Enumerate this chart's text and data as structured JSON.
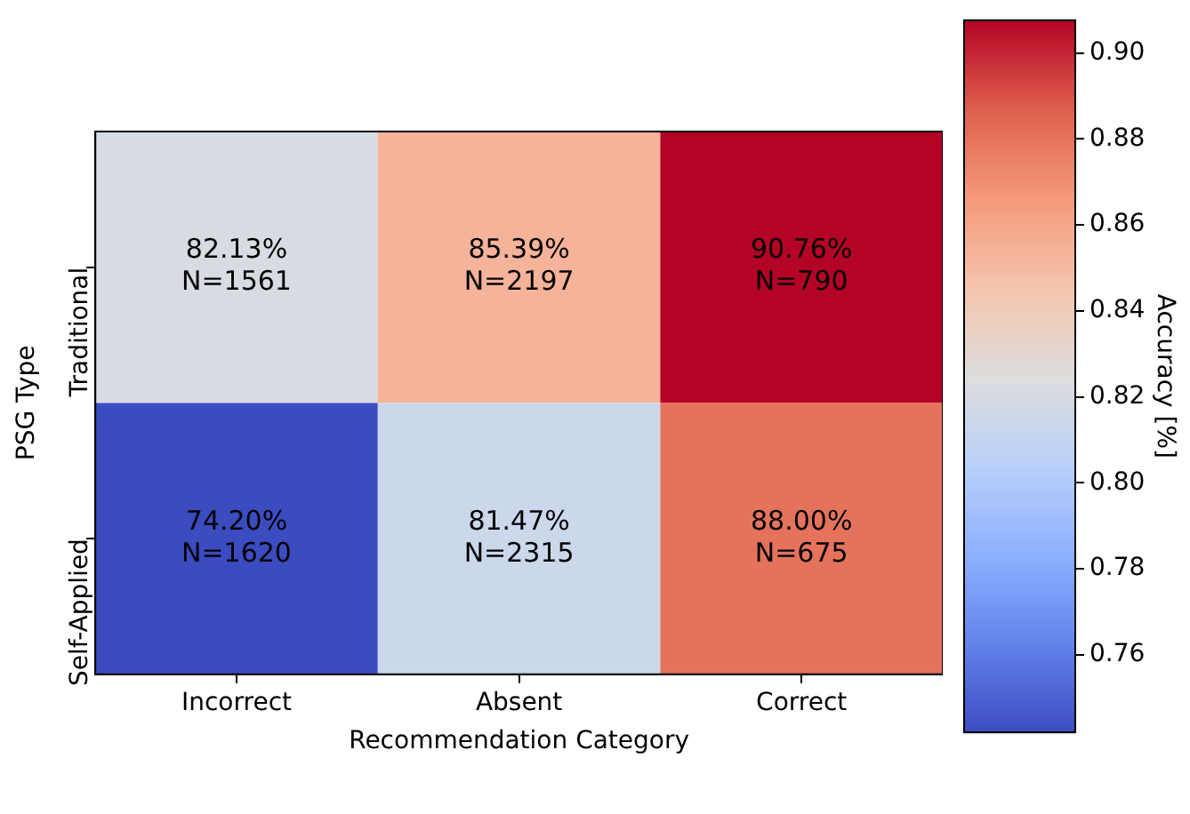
{
  "chart_data": {
    "type": "heatmap",
    "xlabel": "Recommendation Category",
    "ylabel": "PSG Type",
    "clabel": "Accuracy [%]",
    "categories": [
      "Incorrect",
      "Absent",
      "Correct"
    ],
    "y_categories": [
      "Traditional",
      "Self-Applied"
    ],
    "cells": [
      [
        0.8213,
        0.8539,
        0.9076
      ],
      [
        0.742,
        0.8147,
        0.88
      ]
    ],
    "cell_labels": [
      [
        "82.13%\nN=1561",
        "85.39%\nN=2197",
        "90.76%\nN=790"
      ],
      [
        "74.20%\nN=1620",
        "81.47%\nN=2315",
        "88.00%\nN=675"
      ]
    ],
    "clim": [
      0.742,
      0.9076
    ],
    "cticks": [
      {
        "value": 0.76,
        "label": "0.76"
      },
      {
        "value": 0.78,
        "label": "0.78"
      },
      {
        "value": 0.8,
        "label": "0.80"
      },
      {
        "value": 0.82,
        "label": "0.82"
      },
      {
        "value": 0.84,
        "label": "0.84"
      },
      {
        "value": 0.86,
        "label": "0.86"
      },
      {
        "value": 0.88,
        "label": "0.88"
      },
      {
        "value": 0.9,
        "label": "0.90"
      }
    ]
  }
}
